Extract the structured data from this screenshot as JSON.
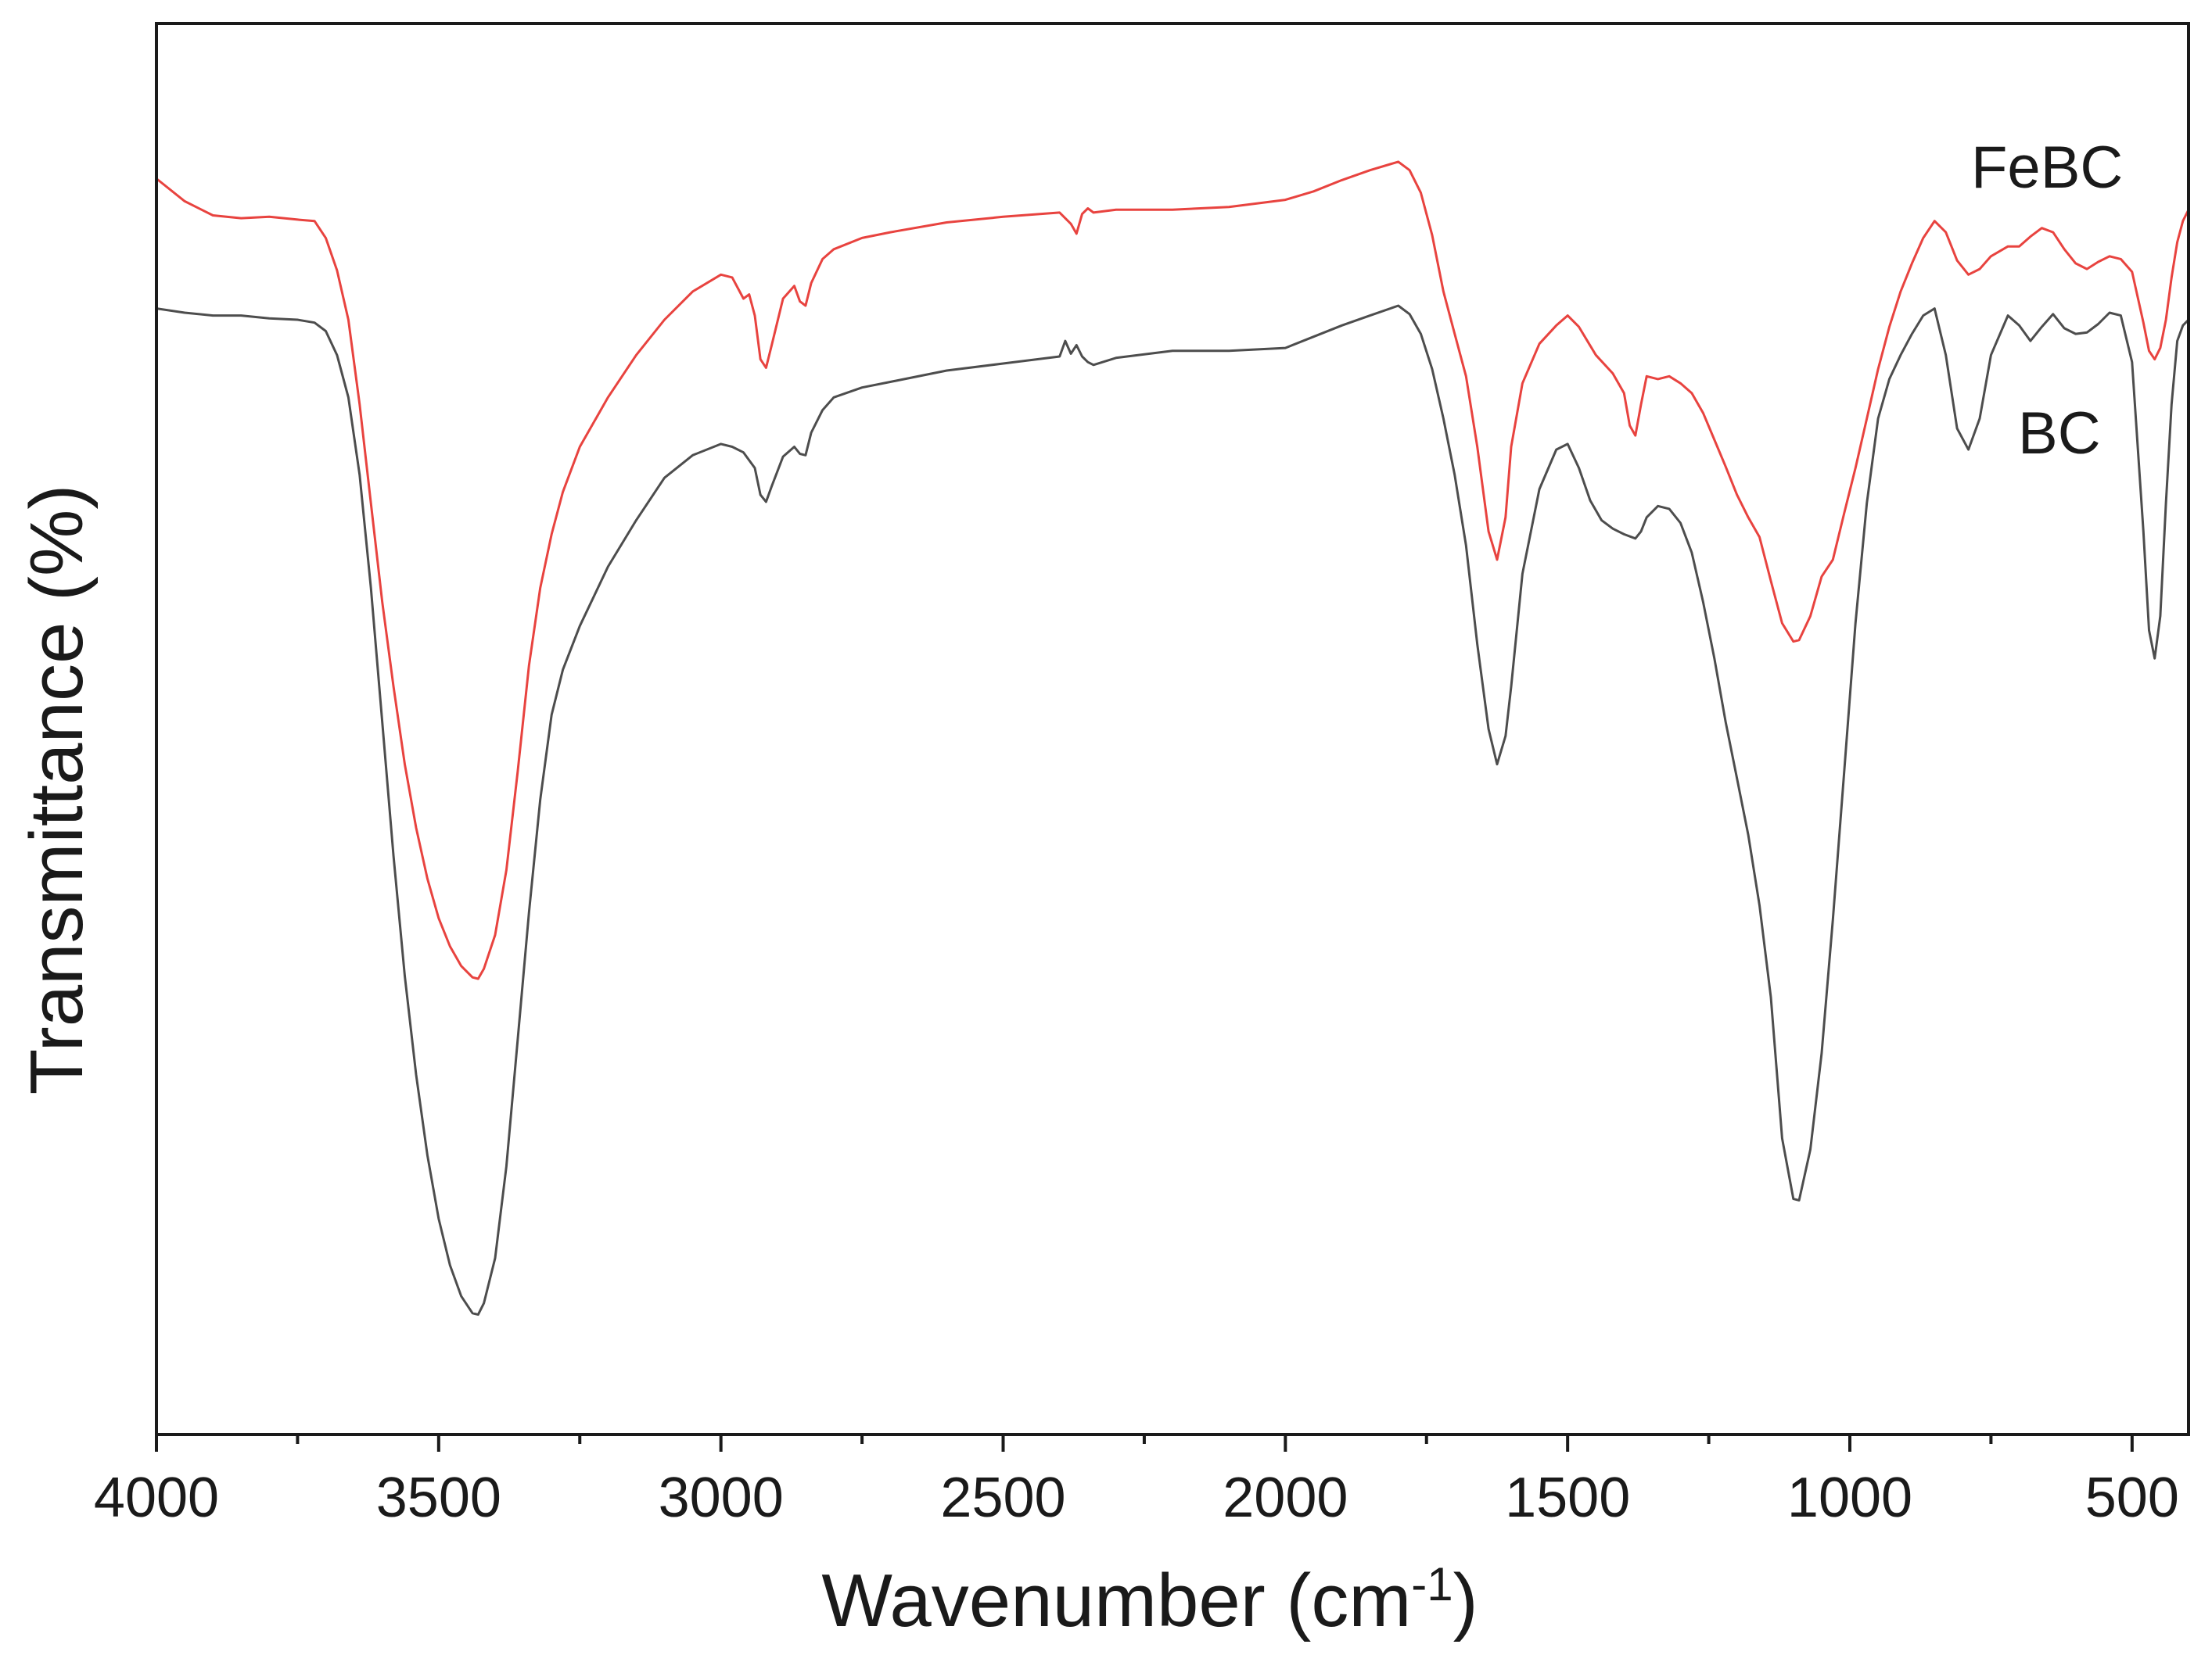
{
  "chart_data": {
    "type": "line",
    "title": "",
    "xlabel": "Wavenumber (cm",
    "xlabel_superscript": "-1",
    "xlabel_close": ")",
    "ylabel": "Transmittance (%)",
    "xlim": [
      4000,
      400
    ],
    "ylim": [
      0,
      100
    ],
    "x_reversed": true,
    "grid": false,
    "y_ticks_shown": false,
    "x_ticks": [
      {
        "value": 4000,
        "label": "4000"
      },
      {
        "value": 3500,
        "label": "3500"
      },
      {
        "value": 3000,
        "label": "3000"
      },
      {
        "value": 2500,
        "label": "2500"
      },
      {
        "value": 2000,
        "label": "2000"
      },
      {
        "value": 1500,
        "label": "1500"
      },
      {
        "value": 1000,
        "label": "1000"
      },
      {
        "value": 500,
        "label": "500"
      }
    ],
    "x_minor_ticks": [
      3750,
      3250,
      2750,
      2250,
      1750,
      1250,
      750
    ],
    "series": [
      {
        "name": "FeBC",
        "color": "#e8433f",
        "points": [
          [
            4000,
            89
          ],
          [
            3950,
            87.4
          ],
          [
            3900,
            86.4
          ],
          [
            3850,
            86.2
          ],
          [
            3800,
            86.3
          ],
          [
            3750,
            86.1
          ],
          [
            3720,
            86
          ],
          [
            3700,
            84.8
          ],
          [
            3680,
            82.5
          ],
          [
            3660,
            79
          ],
          [
            3640,
            73
          ],
          [
            3620,
            66
          ],
          [
            3600,
            59
          ],
          [
            3580,
            53
          ],
          [
            3560,
            47.5
          ],
          [
            3540,
            43
          ],
          [
            3520,
            39.4
          ],
          [
            3500,
            36.6
          ],
          [
            3480,
            34.6
          ],
          [
            3460,
            33.2
          ],
          [
            3440,
            32.4
          ],
          [
            3430,
            32.3
          ],
          [
            3420,
            33
          ],
          [
            3400,
            35.4
          ],
          [
            3380,
            40
          ],
          [
            3360,
            47
          ],
          [
            3340,
            54.5
          ],
          [
            3320,
            60
          ],
          [
            3300,
            63.8
          ],
          [
            3280,
            66.8
          ],
          [
            3250,
            70
          ],
          [
            3200,
            73.5
          ],
          [
            3150,
            76.5
          ],
          [
            3100,
            79
          ],
          [
            3050,
            81
          ],
          [
            3000,
            82.2
          ],
          [
            2980,
            82
          ],
          [
            2960,
            80.5
          ],
          [
            2950,
            80.8
          ],
          [
            2940,
            79.3
          ],
          [
            2930,
            76.2
          ],
          [
            2920,
            75.6
          ],
          [
            2910,
            77.2
          ],
          [
            2890,
            80.5
          ],
          [
            2870,
            81.4
          ],
          [
            2860,
            80.3
          ],
          [
            2850,
            80
          ],
          [
            2840,
            81.6
          ],
          [
            2820,
            83.3
          ],
          [
            2800,
            84
          ],
          [
            2750,
            84.8
          ],
          [
            2700,
            85.2
          ],
          [
            2600,
            85.9
          ],
          [
            2500,
            86.3
          ],
          [
            2400,
            86.6
          ],
          [
            2380,
            85.8
          ],
          [
            2370,
            85.1
          ],
          [
            2360,
            86.5
          ],
          [
            2350,
            86.9
          ],
          [
            2340,
            86.6
          ],
          [
            2300,
            86.8
          ],
          [
            2200,
            86.8
          ],
          [
            2100,
            87
          ],
          [
            2000,
            87.5
          ],
          [
            1950,
            88.1
          ],
          [
            1900,
            88.9
          ],
          [
            1850,
            89.6
          ],
          [
            1800,
            90.2
          ],
          [
            1780,
            89.6
          ],
          [
            1760,
            88
          ],
          [
            1740,
            85
          ],
          [
            1720,
            81
          ],
          [
            1700,
            78
          ],
          [
            1680,
            75
          ],
          [
            1660,
            70
          ],
          [
            1640,
            64
          ],
          [
            1625,
            62
          ],
          [
            1610,
            65
          ],
          [
            1600,
            70
          ],
          [
            1580,
            74.5
          ],
          [
            1550,
            77.3
          ],
          [
            1520,
            78.6
          ],
          [
            1500,
            79.3
          ],
          [
            1480,
            78.5
          ],
          [
            1450,
            76.5
          ],
          [
            1420,
            75.2
          ],
          [
            1400,
            73.8
          ],
          [
            1390,
            71.5
          ],
          [
            1380,
            70.8
          ],
          [
            1370,
            73
          ],
          [
            1360,
            75
          ],
          [
            1340,
            74.8
          ],
          [
            1320,
            75
          ],
          [
            1300,
            74.5
          ],
          [
            1280,
            73.8
          ],
          [
            1260,
            72.4
          ],
          [
            1240,
            70.5
          ],
          [
            1220,
            68.6
          ],
          [
            1200,
            66.6
          ],
          [
            1180,
            65
          ],
          [
            1160,
            63.6
          ],
          [
            1140,
            60.5
          ],
          [
            1120,
            57.5
          ],
          [
            1100,
            56.2
          ],
          [
            1090,
            56.3
          ],
          [
            1070,
            58
          ],
          [
            1050,
            60.8
          ],
          [
            1030,
            62
          ],
          [
            1010,
            65.3
          ],
          [
            990,
            68.5
          ],
          [
            970,
            72
          ],
          [
            950,
            75.5
          ],
          [
            930,
            78.5
          ],
          [
            910,
            81
          ],
          [
            890,
            83
          ],
          [
            870,
            84.8
          ],
          [
            850,
            86
          ],
          [
            830,
            85.2
          ],
          [
            810,
            83.2
          ],
          [
            790,
            82.2
          ],
          [
            770,
            82.6
          ],
          [
            750,
            83.5
          ],
          [
            720,
            84.2
          ],
          [
            700,
            84.2
          ],
          [
            680,
            84.9
          ],
          [
            660,
            85.5
          ],
          [
            640,
            85.2
          ],
          [
            620,
            84
          ],
          [
            600,
            83
          ],
          [
            580,
            82.6
          ],
          [
            560,
            83.1
          ],
          [
            540,
            83.5
          ],
          [
            520,
            83.3
          ],
          [
            500,
            82.4
          ],
          [
            480,
            78.8
          ],
          [
            470,
            76.8
          ],
          [
            460,
            76.2
          ],
          [
            450,
            77
          ],
          [
            440,
            79
          ],
          [
            430,
            82
          ],
          [
            420,
            84.5
          ],
          [
            410,
            86
          ],
          [
            400,
            86.8
          ]
        ]
      },
      {
        "name": "BC",
        "color": "#4d4d4d",
        "points": [
          [
            4000,
            79.8
          ],
          [
            3950,
            79.5
          ],
          [
            3900,
            79.3
          ],
          [
            3850,
            79.3
          ],
          [
            3800,
            79.1
          ],
          [
            3750,
            79
          ],
          [
            3720,
            78.8
          ],
          [
            3700,
            78.2
          ],
          [
            3680,
            76.5
          ],
          [
            3660,
            73.5
          ],
          [
            3640,
            68
          ],
          [
            3620,
            60
          ],
          [
            3600,
            50.5
          ],
          [
            3580,
            41
          ],
          [
            3560,
            32.5
          ],
          [
            3540,
            25.5
          ],
          [
            3520,
            19.8
          ],
          [
            3500,
            15.3
          ],
          [
            3480,
            12
          ],
          [
            3460,
            9.8
          ],
          [
            3440,
            8.6
          ],
          [
            3430,
            8.5
          ],
          [
            3420,
            9.3
          ],
          [
            3400,
            12.5
          ],
          [
            3380,
            19
          ],
          [
            3360,
            28
          ],
          [
            3340,
            37
          ],
          [
            3320,
            45
          ],
          [
            3300,
            51
          ],
          [
            3280,
            54.2
          ],
          [
            3250,
            57.3
          ],
          [
            3200,
            61.5
          ],
          [
            3150,
            64.8
          ],
          [
            3100,
            67.8
          ],
          [
            3050,
            69.4
          ],
          [
            3000,
            70.2
          ],
          [
            2980,
            70
          ],
          [
            2960,
            69.6
          ],
          [
            2940,
            68.5
          ],
          [
            2930,
            66.6
          ],
          [
            2920,
            66.1
          ],
          [
            2910,
            67.2
          ],
          [
            2890,
            69.3
          ],
          [
            2870,
            70
          ],
          [
            2860,
            69.5
          ],
          [
            2850,
            69.4
          ],
          [
            2840,
            71
          ],
          [
            2820,
            72.6
          ],
          [
            2800,
            73.5
          ],
          [
            2750,
            74.2
          ],
          [
            2700,
            74.6
          ],
          [
            2600,
            75.4
          ],
          [
            2500,
            75.9
          ],
          [
            2400,
            76.4
          ],
          [
            2390,
            77.5
          ],
          [
            2380,
            76.6
          ],
          [
            2370,
            77.2
          ],
          [
            2360,
            76.4
          ],
          [
            2350,
            76
          ],
          [
            2340,
            75.8
          ],
          [
            2300,
            76.3
          ],
          [
            2200,
            76.8
          ],
          [
            2100,
            76.8
          ],
          [
            2000,
            77
          ],
          [
            1950,
            77.8
          ],
          [
            1900,
            78.6
          ],
          [
            1850,
            79.3
          ],
          [
            1800,
            80
          ],
          [
            1780,
            79.4
          ],
          [
            1760,
            78
          ],
          [
            1740,
            75.5
          ],
          [
            1720,
            72
          ],
          [
            1700,
            68
          ],
          [
            1680,
            63
          ],
          [
            1660,
            56
          ],
          [
            1640,
            50
          ],
          [
            1625,
            47.5
          ],
          [
            1610,
            49.5
          ],
          [
            1600,
            53
          ],
          [
            1580,
            61
          ],
          [
            1550,
            67
          ],
          [
            1520,
            69.8
          ],
          [
            1500,
            70.2
          ],
          [
            1480,
            68.5
          ],
          [
            1460,
            66.2
          ],
          [
            1440,
            64.8
          ],
          [
            1420,
            64.2
          ],
          [
            1400,
            63.8
          ],
          [
            1380,
            63.5
          ],
          [
            1370,
            64
          ],
          [
            1360,
            65
          ],
          [
            1340,
            65.8
          ],
          [
            1320,
            65.6
          ],
          [
            1300,
            64.6
          ],
          [
            1280,
            62.5
          ],
          [
            1260,
            59
          ],
          [
            1240,
            55
          ],
          [
            1220,
            50.5
          ],
          [
            1200,
            46.5
          ],
          [
            1180,
            42.5
          ],
          [
            1160,
            37.5
          ],
          [
            1140,
            31
          ],
          [
            1120,
            21
          ],
          [
            1100,
            16.7
          ],
          [
            1090,
            16.6
          ],
          [
            1070,
            20.2
          ],
          [
            1050,
            27
          ],
          [
            1030,
            36.5
          ],
          [
            1010,
            47
          ],
          [
            990,
            57.5
          ],
          [
            970,
            66
          ],
          [
            950,
            72
          ],
          [
            930,
            74.8
          ],
          [
            910,
            76.5
          ],
          [
            890,
            78
          ],
          [
            870,
            79.3
          ],
          [
            850,
            79.8
          ],
          [
            830,
            76.5
          ],
          [
            810,
            71.3
          ],
          [
            790,
            69.8
          ],
          [
            770,
            72
          ],
          [
            750,
            76.5
          ],
          [
            720,
            79.3
          ],
          [
            700,
            78.6
          ],
          [
            680,
            77.5
          ],
          [
            660,
            78.5
          ],
          [
            640,
            79.4
          ],
          [
            620,
            78.4
          ],
          [
            600,
            78
          ],
          [
            580,
            78.1
          ],
          [
            560,
            78.7
          ],
          [
            540,
            79.5
          ],
          [
            520,
            79.3
          ],
          [
            500,
            76
          ],
          [
            480,
            64
          ],
          [
            470,
            57
          ],
          [
            460,
            55
          ],
          [
            450,
            58
          ],
          [
            440,
            66
          ],
          [
            430,
            73
          ],
          [
            420,
            77.5
          ],
          [
            410,
            78.6
          ],
          [
            400,
            79
          ]
        ]
      }
    ],
    "annotations": [
      {
        "text": "FeBC",
        "series": "FeBC"
      },
      {
        "text": "BC",
        "series": "BC"
      }
    ]
  }
}
